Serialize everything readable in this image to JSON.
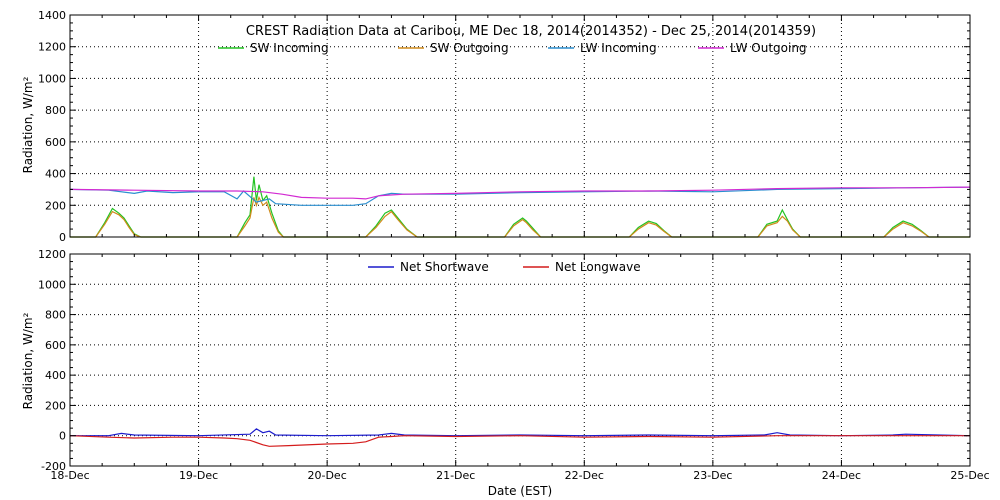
{
  "chart_data": [
    {
      "type": "line",
      "title": "CREST Radiation Data at Caribou, ME   Dec 18, 2014(2014352) - Dec 25, 2014(2014359)",
      "xlabel": "",
      "ylabel": "Radiation, W/m^2",
      "ylim": [
        0,
        1400
      ],
      "yticks": [
        0,
        200,
        400,
        600,
        800,
        1000,
        1200,
        1400
      ],
      "xlim": [
        0,
        7
      ],
      "x_tick_labels": [
        "18-Dec",
        "19-Dec",
        "20-Dec",
        "21-Dec",
        "22-Dec",
        "23-Dec",
        "24-Dec",
        "25-Dec"
      ],
      "grid": true,
      "legend_placement": "top",
      "series": [
        {
          "name": "SW Incoming",
          "color": "#22c322",
          "x": [
            0,
            0.2,
            0.27,
            0.33,
            0.38,
            0.42,
            0.46,
            0.5,
            0.55,
            0.6,
            1.0,
            1.3,
            1.36,
            1.4,
            1.43,
            1.45,
            1.47,
            1.5,
            1.53,
            1.57,
            1.62,
            1.66,
            2.0,
            2.3,
            2.38,
            2.45,
            2.5,
            2.55,
            2.62,
            2.7,
            3.0,
            3.38,
            3.45,
            3.52,
            3.55,
            3.6,
            3.66,
            4.0,
            4.35,
            4.42,
            4.5,
            4.56,
            4.62,
            4.68,
            5.0,
            5.35,
            5.42,
            5.5,
            5.54,
            5.58,
            5.62,
            5.68,
            6.0,
            6.33,
            6.4,
            6.48,
            6.55,
            6.62,
            6.68,
            7.0
          ],
          "y": [
            0,
            0,
            90,
            180,
            150,
            120,
            70,
            20,
            0,
            0,
            0,
            0,
            90,
            140,
            380,
            230,
            330,
            230,
            260,
            150,
            40,
            0,
            0,
            0,
            70,
            150,
            170,
            120,
            50,
            0,
            0,
            0,
            80,
            120,
            100,
            55,
            0,
            0,
            0,
            60,
            100,
            85,
            40,
            0,
            0,
            0,
            80,
            100,
            170,
            110,
            50,
            0,
            0,
            0,
            60,
            100,
            80,
            40,
            0,
            0
          ]
        },
        {
          "name": "SW Outgoing",
          "color": "#d08c1c",
          "x": [
            0,
            0.2,
            0.27,
            0.33,
            0.38,
            0.42,
            0.46,
            0.5,
            0.55,
            0.6,
            1.0,
            1.3,
            1.36,
            1.4,
            1.43,
            1.45,
            1.47,
            1.5,
            1.53,
            1.57,
            1.62,
            1.66,
            2.0,
            2.3,
            2.38,
            2.45,
            2.5,
            2.55,
            2.62,
            2.7,
            3.0,
            3.38,
            3.45,
            3.52,
            3.55,
            3.6,
            3.66,
            4.0,
            4.35,
            4.42,
            4.5,
            4.56,
            4.62,
            4.68,
            5.0,
            5.35,
            5.42,
            5.5,
            5.54,
            5.58,
            5.62,
            5.68,
            6.0,
            6.33,
            6.4,
            6.48,
            6.55,
            6.62,
            6.68,
            7.0
          ],
          "y": [
            0,
            0,
            80,
            160,
            140,
            110,
            60,
            15,
            0,
            0,
            0,
            0,
            70,
            120,
            250,
            200,
            250,
            200,
            220,
            120,
            30,
            0,
            0,
            0,
            60,
            130,
            160,
            110,
            45,
            0,
            0,
            0,
            70,
            110,
            90,
            45,
            0,
            0,
            0,
            50,
            90,
            75,
            35,
            0,
            0,
            0,
            70,
            90,
            130,
            100,
            45,
            0,
            0,
            0,
            50,
            90,
            70,
            35,
            0,
            0
          ]
        },
        {
          "name": "LW Incoming",
          "color": "#2a8ecf",
          "x": [
            0,
            0.3,
            0.5,
            0.6,
            0.8,
            1.0,
            1.2,
            1.3,
            1.35,
            1.45,
            1.55,
            1.6,
            1.8,
            2.0,
            2.2,
            2.3,
            2.4,
            2.5,
            2.6,
            3.0,
            3.5,
            4.0,
            4.5,
            5.0,
            5.5,
            6.0,
            6.5,
            7.0
          ],
          "y": [
            300,
            295,
            275,
            290,
            280,
            285,
            285,
            240,
            290,
            220,
            240,
            210,
            200,
            200,
            200,
            210,
            260,
            275,
            270,
            270,
            280,
            285,
            290,
            285,
            300,
            305,
            310,
            315
          ]
        },
        {
          "name": "LW Outgoing",
          "color": "#d22ad2",
          "x": [
            0,
            0.5,
            1.0,
            1.3,
            1.5,
            1.65,
            1.8,
            2.0,
            2.2,
            2.3,
            2.4,
            2.6,
            3.0,
            3.5,
            4.0,
            4.5,
            5.0,
            5.5,
            6.0,
            6.5,
            7.0
          ],
          "y": [
            300,
            295,
            290,
            290,
            285,
            270,
            250,
            245,
            245,
            240,
            260,
            270,
            275,
            285,
            290,
            290,
            295,
            305,
            310,
            310,
            315
          ]
        }
      ]
    },
    {
      "type": "line",
      "title": "",
      "xlabel": "Date (EST)",
      "ylabel": "Radiation, W/m^2",
      "ylim": [
        -200,
        1200
      ],
      "yticks": [
        -200,
        0,
        200,
        400,
        600,
        800,
        1000,
        1200
      ],
      "xlim": [
        0,
        7
      ],
      "x_tick_labels": [
        "18-Dec",
        "19-Dec",
        "20-Dec",
        "21-Dec",
        "22-Dec",
        "23-Dec",
        "24-Dec",
        "25-Dec"
      ],
      "grid": true,
      "legend_placement": "top",
      "series": [
        {
          "name": "Net Shortwave",
          "color": "#1c1ccc",
          "x": [
            0,
            0.3,
            0.4,
            0.5,
            1.0,
            1.4,
            1.45,
            1.5,
            1.55,
            1.6,
            2.0,
            2.4,
            2.5,
            2.6,
            3.0,
            3.5,
            4.0,
            4.5,
            5.0,
            5.4,
            5.5,
            5.6,
            6.0,
            6.4,
            6.5,
            7.0
          ],
          "y": [
            0,
            0,
            15,
            5,
            0,
            10,
            45,
            20,
            30,
            5,
            0,
            5,
            15,
            5,
            0,
            5,
            0,
            5,
            0,
            5,
            20,
            5,
            0,
            5,
            10,
            0
          ]
        },
        {
          "name": "Net Longwave",
          "color": "#d41c1c",
          "x": [
            0,
            0.3,
            0.5,
            0.8,
            1.0,
            1.2,
            1.3,
            1.4,
            1.5,
            1.55,
            1.7,
            2.0,
            2.2,
            2.3,
            2.4,
            2.5,
            2.6,
            3.0,
            3.5,
            4.0,
            4.5,
            5.0,
            5.5,
            6.0,
            6.5,
            7.0
          ],
          "y": [
            0,
            -10,
            -15,
            -10,
            -10,
            -15,
            -20,
            -30,
            -60,
            -70,
            -65,
            -55,
            -50,
            -40,
            -10,
            -5,
            0,
            -5,
            0,
            -10,
            -5,
            -10,
            0,
            0,
            0,
            0
          ]
        }
      ]
    }
  ]
}
